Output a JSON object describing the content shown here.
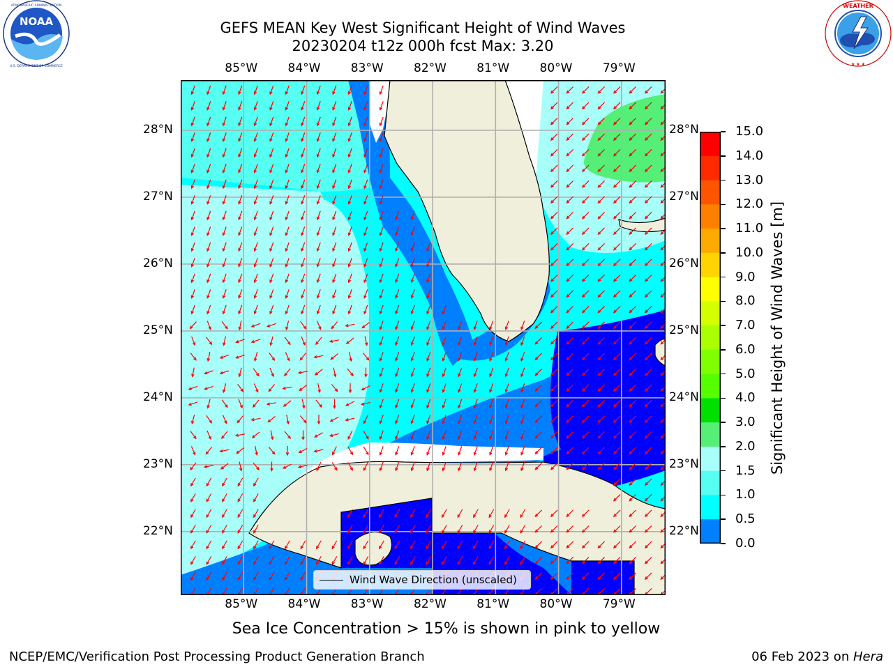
{
  "header": {
    "title_line1": "GEFS MEAN Key West Significant Height of Wind Waves",
    "title_line2": "20230204 t12z 000h fcst   Max: 3.20"
  },
  "logos": {
    "left": {
      "name": "noaa-logo",
      "text": "NOAA",
      "ring_text": "NATIONAL OCEANIC AND ATMOSPHERIC ADMINISTRATION · U.S. DEPARTMENT OF COMMERCE"
    },
    "right": {
      "name": "nws-logo",
      "ring_text": "NATIONAL WEATHER SERVICE"
    }
  },
  "map": {
    "lon_labels": [
      "85°W",
      "84°W",
      "83°W",
      "82°W",
      "81°W",
      "80°W",
      "79°W"
    ],
    "lat_labels": [
      "22°N",
      "23°N",
      "24°N",
      "25°N",
      "26°N",
      "27°N",
      "28°N"
    ],
    "lon_range": [
      -86.0,
      -78.3
    ],
    "lat_range": [
      21.05,
      28.75
    ],
    "arrow_color": "#ff0000",
    "land_color": "#efefdb",
    "grid_color": "#b0b0b0",
    "legend_label": "Wind Wave Direction (unscaled)"
  },
  "colorbar": {
    "title": "Significant Height of Wind Waves [m]",
    "labels": [
      "15.0",
      "14.0",
      "13.0",
      "12.0",
      "11.0",
      "10.0",
      "9.0",
      "8.0",
      "7.0",
      "6.0",
      "5.0",
      "4.0",
      "3.0",
      "2.0",
      "1.5",
      "1.0",
      "0.5",
      "0.0"
    ],
    "colors_top_to_bottom": [
      "#ff0000",
      "#ff2a00",
      "#ff5500",
      "#ff8000",
      "#ffaa00",
      "#ffd400",
      "#ffff00",
      "#d4ff00",
      "#aaff00",
      "#80ff00",
      "#55ff00",
      "#00e000",
      "#55ee77",
      "#a8fffa",
      "#55fff2",
      "#00ffff",
      "#0080ff",
      "#0000ff"
    ]
  },
  "footer": {
    "note": "Sea Ice Concentration > 15% is shown in pink to yellow",
    "left": "NCEP/EMC/Verification Post Processing Product Generation Branch",
    "right_date": "06 Feb 2023 on ",
    "right_host": "Hera"
  }
}
